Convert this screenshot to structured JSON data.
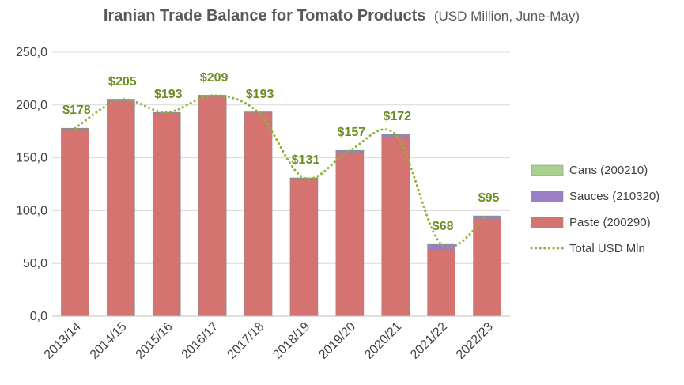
{
  "chart_data": {
    "type": "bar",
    "stacked": true,
    "title": "Iranian Trade Balance for Tomato Products",
    "subtitle": "(USD Million, June-May)",
    "categories": [
      "2013/14",
      "2014/15",
      "2015/16",
      "2016/17",
      "2017/18",
      "2018/19",
      "2019/20",
      "2020/21",
      "2021/22",
      "2022/23"
    ],
    "series": [
      {
        "name": "Paste (200290)",
        "values": [
          176,
          204,
          192,
          208,
          193,
          129,
          155,
          169,
          63,
          92
        ],
        "color": "#d4736f"
      },
      {
        "name": "Sauces (210320)",
        "values": [
          1.5,
          1,
          0.5,
          0.8,
          0,
          1.5,
          1.5,
          2.5,
          4.5,
          2.5
        ],
        "color": "#9b7fc6"
      },
      {
        "name": "Cans (200210)",
        "values": [
          0.5,
          0.5,
          0.5,
          0.5,
          0.5,
          0.5,
          0.5,
          0.5,
          0.5,
          0.5
        ],
        "color": "#a9d08e"
      }
    ],
    "line_series": {
      "name": "Total USD Mln",
      "values": [
        178,
        205,
        193,
        209,
        193,
        131,
        157,
        172,
        68,
        95
      ],
      "labels": [
        "$178",
        "$205",
        "$193",
        "$209",
        "$193",
        "$131",
        "$157",
        "$172",
        "$68",
        "$95"
      ],
      "color": "#8db33a",
      "style": "dotted-smooth"
    },
    "y_ticks": [
      "0,0",
      "50,0",
      "100,0",
      "150,0",
      "200,0",
      "250,0"
    ],
    "ylim": [
      0,
      250
    ],
    "grid": true,
    "legend_position": "right",
    "legend_order": [
      "Cans (200210)",
      "Sauces (210320)",
      "Paste (200290)",
      "Total USD Mln"
    ]
  }
}
